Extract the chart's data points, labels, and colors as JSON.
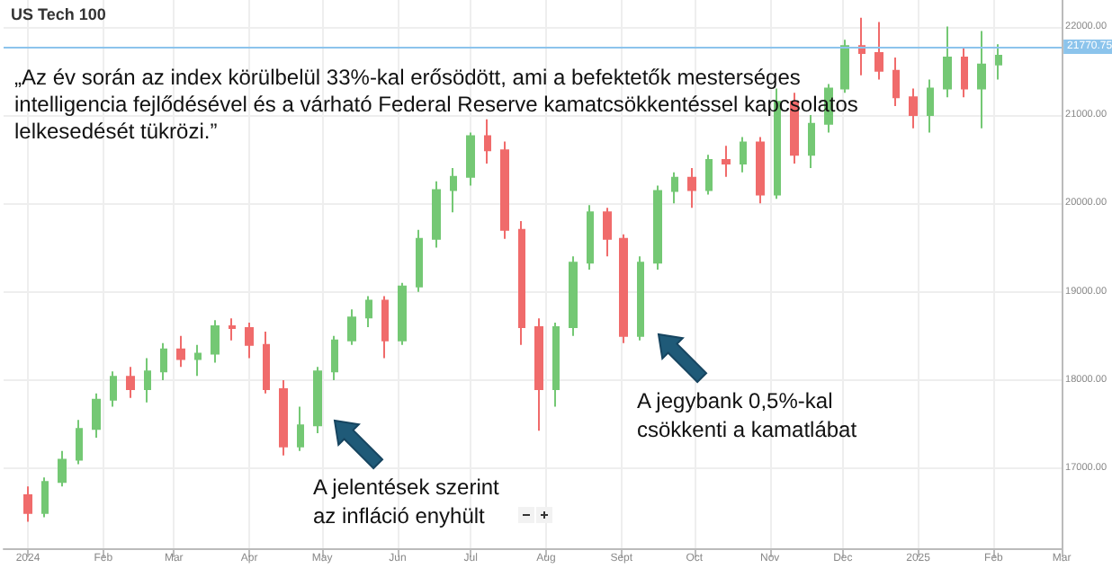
{
  "chart_data": {
    "type": "candlestick",
    "title": "US Tech 100",
    "x": [
      "2024-01-01",
      "2024-01-08",
      "2024-01-15",
      "2024-01-22",
      "2024-01-29",
      "2024-02-05",
      "2024-02-12",
      "2024-02-19",
      "2024-02-26",
      "2024-03-04",
      "2024-03-11",
      "2024-03-18",
      "2024-03-25",
      "2024-04-01",
      "2024-04-08",
      "2024-04-15",
      "2024-04-22",
      "2024-04-29",
      "2024-05-06",
      "2024-05-13",
      "2024-05-20",
      "2024-05-27",
      "2024-06-03",
      "2024-06-10",
      "2024-06-17",
      "2024-06-24",
      "2024-07-01",
      "2024-07-08",
      "2024-07-15",
      "2024-07-22",
      "2024-07-29",
      "2024-08-05",
      "2024-08-12",
      "2024-08-19",
      "2024-08-26",
      "2024-09-02",
      "2024-09-09",
      "2024-09-16",
      "2024-09-23",
      "2024-09-30",
      "2024-10-07",
      "2024-10-14",
      "2024-10-21",
      "2024-10-28",
      "2024-11-04",
      "2024-11-11",
      "2024-11-18",
      "2024-11-25",
      "2024-12-02",
      "2024-12-09",
      "2024-12-16",
      "2024-12-23",
      "2024-12-30",
      "2025-01-06",
      "2025-01-13",
      "2025-01-20",
      "2025-01-27",
      "2025-02-03"
    ],
    "ohlc": [
      [
        16700,
        16800,
        16400,
        16500
      ],
      [
        16500,
        16900,
        16450,
        16850
      ],
      [
        16850,
        17200,
        16800,
        17100
      ],
      [
        17100,
        17550,
        17050,
        17450
      ],
      [
        17450,
        17850,
        17350,
        17780
      ],
      [
        17780,
        18100,
        17700,
        18040
      ],
      [
        18040,
        18150,
        17800,
        17900
      ],
      [
        17900,
        18250,
        17750,
        18100
      ],
      [
        18100,
        18420,
        18000,
        18350
      ],
      [
        18350,
        18500,
        18150,
        18240
      ],
      [
        18240,
        18400,
        18050,
        18300
      ],
      [
        18300,
        18680,
        18200,
        18610
      ],
      [
        18610,
        18700,
        18450,
        18590
      ],
      [
        18590,
        18650,
        18250,
        18400
      ],
      [
        18400,
        18550,
        17850,
        17900
      ],
      [
        17900,
        18000,
        17150,
        17250
      ],
      [
        17250,
        17700,
        17200,
        17490
      ],
      [
        17490,
        18150,
        17400,
        18100
      ],
      [
        18100,
        18500,
        18000,
        18450
      ],
      [
        18450,
        18800,
        18400,
        18710
      ],
      [
        18710,
        18950,
        18600,
        18900
      ],
      [
        18900,
        18950,
        18250,
        18450
      ],
      [
        18450,
        19100,
        18400,
        19060
      ],
      [
        19060,
        19700,
        19000,
        19600
      ],
      [
        19600,
        20250,
        19500,
        20150
      ],
      [
        20150,
        20400,
        19900,
        20300
      ],
      [
        20300,
        20800,
        20200,
        20760
      ],
      [
        20760,
        20950,
        20450,
        20600
      ],
      [
        20600,
        20700,
        19600,
        19700
      ],
      [
        19700,
        19800,
        18400,
        18600
      ],
      [
        18600,
        18700,
        17430,
        17900
      ],
      [
        17900,
        18650,
        17700,
        18600
      ],
      [
        18600,
        19400,
        18500,
        19330
      ],
      [
        19330,
        19980,
        19250,
        19900
      ],
      [
        19900,
        19950,
        19400,
        19600
      ],
      [
        19600,
        19650,
        18420,
        18500
      ],
      [
        18500,
        19400,
        18450,
        19330
      ],
      [
        19330,
        20200,
        19250,
        20140
      ],
      [
        20140,
        20350,
        20000,
        20290
      ],
      [
        20290,
        20400,
        19950,
        20150
      ],
      [
        20150,
        20550,
        20100,
        20490
      ],
      [
        20490,
        20650,
        20300,
        20450
      ],
      [
        20450,
        20750,
        20350,
        20690
      ],
      [
        20690,
        20750,
        20000,
        20100
      ],
      [
        20100,
        21300,
        20050,
        21150
      ],
      [
        21150,
        21250,
        20450,
        20550
      ],
      [
        20550,
        21000,
        20400,
        20900
      ],
      [
        20900,
        21350,
        20800,
        21300
      ],
      [
        21300,
        21850,
        21250,
        21780
      ],
      [
        21780,
        22100,
        21450,
        21700
      ],
      [
        21700,
        22050,
        21400,
        21500
      ],
      [
        21500,
        21650,
        21100,
        21200
      ],
      [
        21200,
        21300,
        20850,
        21000
      ],
      [
        21000,
        21400,
        20800,
        21300
      ],
      [
        21300,
        22000,
        21200,
        21650
      ],
      [
        21650,
        21750,
        21200,
        21300
      ],
      [
        21300,
        21950,
        20850,
        21570
      ],
      [
        21570,
        21800,
        21400,
        21670
      ]
    ],
    "colors": [
      "#f06b6b",
      "#74c874",
      "#74c874",
      "#74c874",
      "#74c874",
      "#74c874",
      "#f06b6b",
      "#74c874",
      "#74c874",
      "#f06b6b",
      "#74c874",
      "#74c874",
      "#f06b6b",
      "#f06b6b",
      "#f06b6b",
      "#f06b6b",
      "#74c874",
      "#74c874",
      "#74c874",
      "#74c874",
      "#74c874",
      "#f06b6b",
      "#74c874",
      "#74c874",
      "#74c874",
      "#74c874",
      "#74c874",
      "#f06b6b",
      "#f06b6b",
      "#f06b6b",
      "#f06b6b",
      "#74c874",
      "#74c874",
      "#74c874",
      "#f06b6b",
      "#f06b6b",
      "#74c874",
      "#74c874",
      "#74c874",
      "#f06b6b",
      "#74c874",
      "#f06b6b",
      "#74c874",
      "#f06b6b",
      "#74c874",
      "#f06b6b",
      "#74c874",
      "#74c874",
      "#74c874",
      "#f06b6b",
      "#f06b6b",
      "#f06b6b",
      "#f06b6b",
      "#74c874",
      "#74c874",
      "#f06b6b",
      "#74c874",
      "#74c874"
    ],
    "xlim": [
      "2023-12-22",
      "2025-03-01"
    ],
    "xticks": [
      {
        "value": "2024-01-01",
        "label": "2024"
      },
      {
        "value": "2024-02-01",
        "label": "Feb"
      },
      {
        "value": "2024-03-01",
        "label": "Mar"
      },
      {
        "value": "2024-04-01",
        "label": "Apr"
      },
      {
        "value": "2024-05-01",
        "label": "May"
      },
      {
        "value": "2024-06-01",
        "label": "Jun"
      },
      {
        "value": "2024-07-01",
        "label": "Jul"
      },
      {
        "value": "2024-08-01",
        "label": "Aug"
      },
      {
        "value": "2024-09-01",
        "label": "Sept"
      },
      {
        "value": "2024-10-01",
        "label": "Oct"
      },
      {
        "value": "2024-11-01",
        "label": "Nov"
      },
      {
        "value": "2024-12-01",
        "label": "Dec"
      },
      {
        "value": "2025-01-01",
        "label": "2025"
      },
      {
        "value": "2025-02-01",
        "label": "Feb"
      },
      {
        "value": "2025-03-01",
        "label": "Mar"
      }
    ],
    "ylim": [
      16100,
      22300
    ],
    "yticks": [
      {
        "value": 17000,
        "label": "17000.00"
      },
      {
        "value": 18000,
        "label": "18000.00"
      },
      {
        "value": 19000,
        "label": "19000.00"
      },
      {
        "value": 20000,
        "label": "20000.00"
      },
      {
        "value": 21000,
        "label": "21000.00"
      },
      {
        "value": 22000,
        "label": "22000.00"
      }
    ],
    "grid": true,
    "ref_lines": [
      {
        "axis": "y",
        "value": 21770.75,
        "label": "21770.75",
        "color": "#8cc4ec"
      }
    ],
    "annotations": [
      "„Az év során az index körülbelül 33%-kal erősödött, ami a befektetők mesterséges intelligencia fejlődésével és a várható Federal Reserve kamatcsökkentéssel kapcsolatos lelkesedését tükrözi.”",
      "A jelentések szerint az infláció enyhült",
      "A jegybank 0,5%-kal csökkenti a kamatlábat"
    ]
  }
}
